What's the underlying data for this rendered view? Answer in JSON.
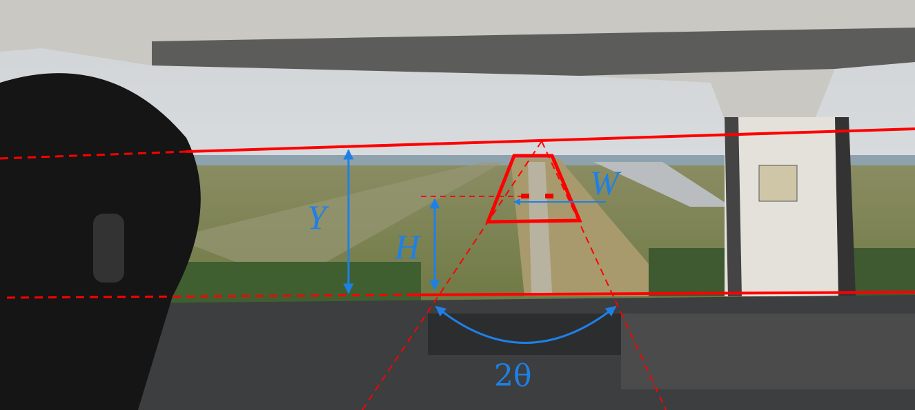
{
  "labels": {
    "y": "Y",
    "h": "H",
    "w": "W",
    "angle": "2θ"
  }
}
